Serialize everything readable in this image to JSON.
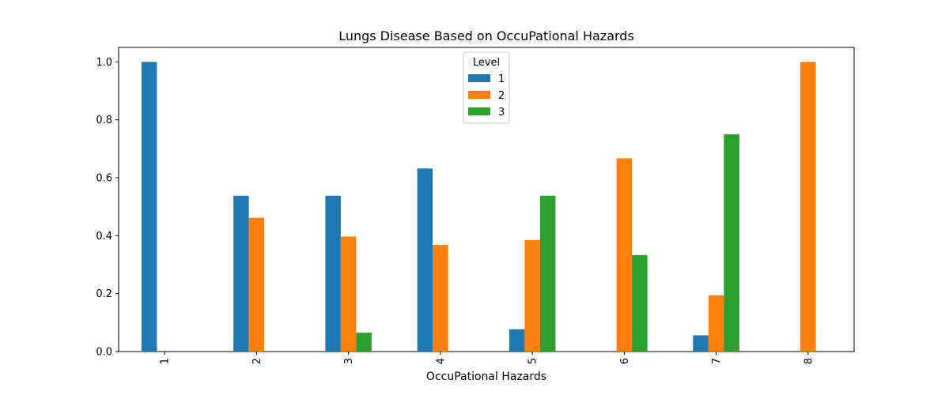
{
  "chart_data": {
    "type": "bar",
    "title": "Lungs Disease Based on OccuPational Hazards",
    "xlabel": "OccuPational Hazards",
    "ylabel": "",
    "categories": [
      "1",
      "2",
      "3",
      "4",
      "5",
      "6",
      "7",
      "8"
    ],
    "ylim": [
      0,
      1.05
    ],
    "yticks": [
      "0.0",
      "0.2",
      "0.4",
      "0.6",
      "0.8",
      "1.0"
    ],
    "legend": {
      "title": "Level",
      "placement": "top-center"
    },
    "grid": false,
    "series": [
      {
        "name": "1",
        "color": "#1f77b4",
        "values": [
          1.0,
          0.538,
          0.538,
          0.632,
          0.077,
          0.0,
          0.056,
          0.0
        ]
      },
      {
        "name": "2",
        "color": "#ff7f0e",
        "values": [
          0.0,
          0.462,
          0.397,
          0.368,
          0.385,
          0.667,
          0.194,
          1.0
        ]
      },
      {
        "name": "3",
        "color": "#2ca02c",
        "values": [
          0.0,
          0.0,
          0.065,
          0.0,
          0.538,
          0.333,
          0.75,
          0.0
        ]
      }
    ]
  }
}
